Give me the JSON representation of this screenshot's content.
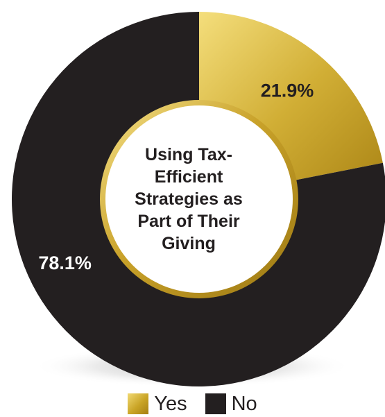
{
  "chart_data": {
    "type": "pie",
    "title": "Using Tax-Efficient Strategies as Part of Their Giving",
    "categories": [
      "Yes",
      "No"
    ],
    "values": [
      21.9,
      78.1
    ],
    "labels": [
      "21.9%",
      "78.1%"
    ],
    "colors": [
      "#d4af37",
      "#231f20"
    ],
    "legend_position": "bottom"
  },
  "legend": {
    "yes_label": "Yes",
    "no_label": "No"
  }
}
